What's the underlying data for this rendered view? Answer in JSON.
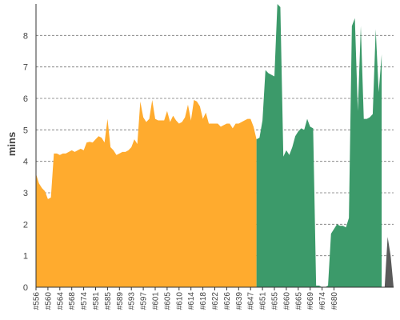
{
  "chart_data": {
    "type": "area",
    "title": "",
    "xlabel": "",
    "ylabel": "mins",
    "ylim": [
      0,
      9
    ],
    "yticks": [
      0,
      1,
      2,
      3,
      4,
      5,
      6,
      7,
      8
    ],
    "grid": true,
    "colors": {
      "pass": "#FFAB2E",
      "fail": "#3C9A6A",
      "unstable": "#5A5A5A",
      "grid": "#777777",
      "text": "#444444"
    },
    "x_tick_labels": [
      "#556",
      "#560",
      "#564",
      "#568",
      "#574",
      "#581",
      "#585",
      "#589",
      "#593",
      "#597",
      "#601",
      "#605",
      "#610",
      "#614",
      "#618",
      "#622",
      "#626",
      "#639",
      "#647",
      "#651",
      "#655",
      "#660",
      "#665",
      "#669",
      "#674",
      "#680"
    ],
    "x_tick_index": [
      0,
      4,
      8,
      12,
      16,
      20,
      24,
      28,
      32,
      36,
      40,
      44,
      48,
      52,
      56,
      60,
      64,
      68,
      72,
      76,
      80,
      84,
      88,
      92,
      96,
      100
    ],
    "series": [
      {
        "color_key": "pass",
        "values": [
          3.6,
          3.3,
          3.15,
          3.05,
          2.8,
          2.85,
          4.25,
          4.25,
          4.2,
          4.25,
          4.25,
          4.3,
          4.35,
          4.3,
          4.35,
          4.4,
          4.35,
          4.6,
          4.62,
          4.6,
          4.7,
          4.8,
          4.75,
          4.6,
          5.35,
          4.45,
          4.35,
          4.2,
          4.25,
          4.3,
          4.3,
          4.35,
          4.45,
          4.7,
          4.55,
          5.9,
          5.4,
          5.25,
          5.35,
          5.95,
          5.35,
          5.3,
          5.3,
          5.3,
          5.6,
          5.25,
          5.45,
          5.3,
          5.2,
          5.25,
          5.4,
          5.8,
          5.3,
          5.95,
          5.9,
          5.75,
          5.35,
          5.55,
          5.2,
          5.2,
          5.2,
          5.2,
          5.1,
          5.15,
          5.2,
          5.2,
          5.05,
          5.2,
          5.2,
          5.25,
          5.3,
          5.35,
          5.35,
          5.1,
          4.7
        ]
      },
      {
        "color_key": "fail",
        "values": [
          4.7,
          4.75,
          5.3,
          6.9,
          6.8,
          6.75,
          6.7,
          9.0,
          8.9,
          4.15,
          4.35,
          4.2,
          4.45,
          4.8,
          4.95,
          5.05,
          5.0,
          5.35,
          5.1,
          5.05,
          0.05,
          0.05,
          0.0,
          0.0,
          0.05,
          1.7,
          1.85,
          2.0,
          1.95,
          1.95,
          1.9,
          2.2,
          8.3,
          8.55,
          5.6,
          8.3,
          5.35,
          5.35,
          5.4,
          5.5,
          8.2,
          6.2,
          7.4
        ]
      },
      {
        "color_key": "unstable",
        "values": [
          0.0,
          0.0,
          1.6,
          1.0,
          0.0
        ]
      }
    ]
  }
}
